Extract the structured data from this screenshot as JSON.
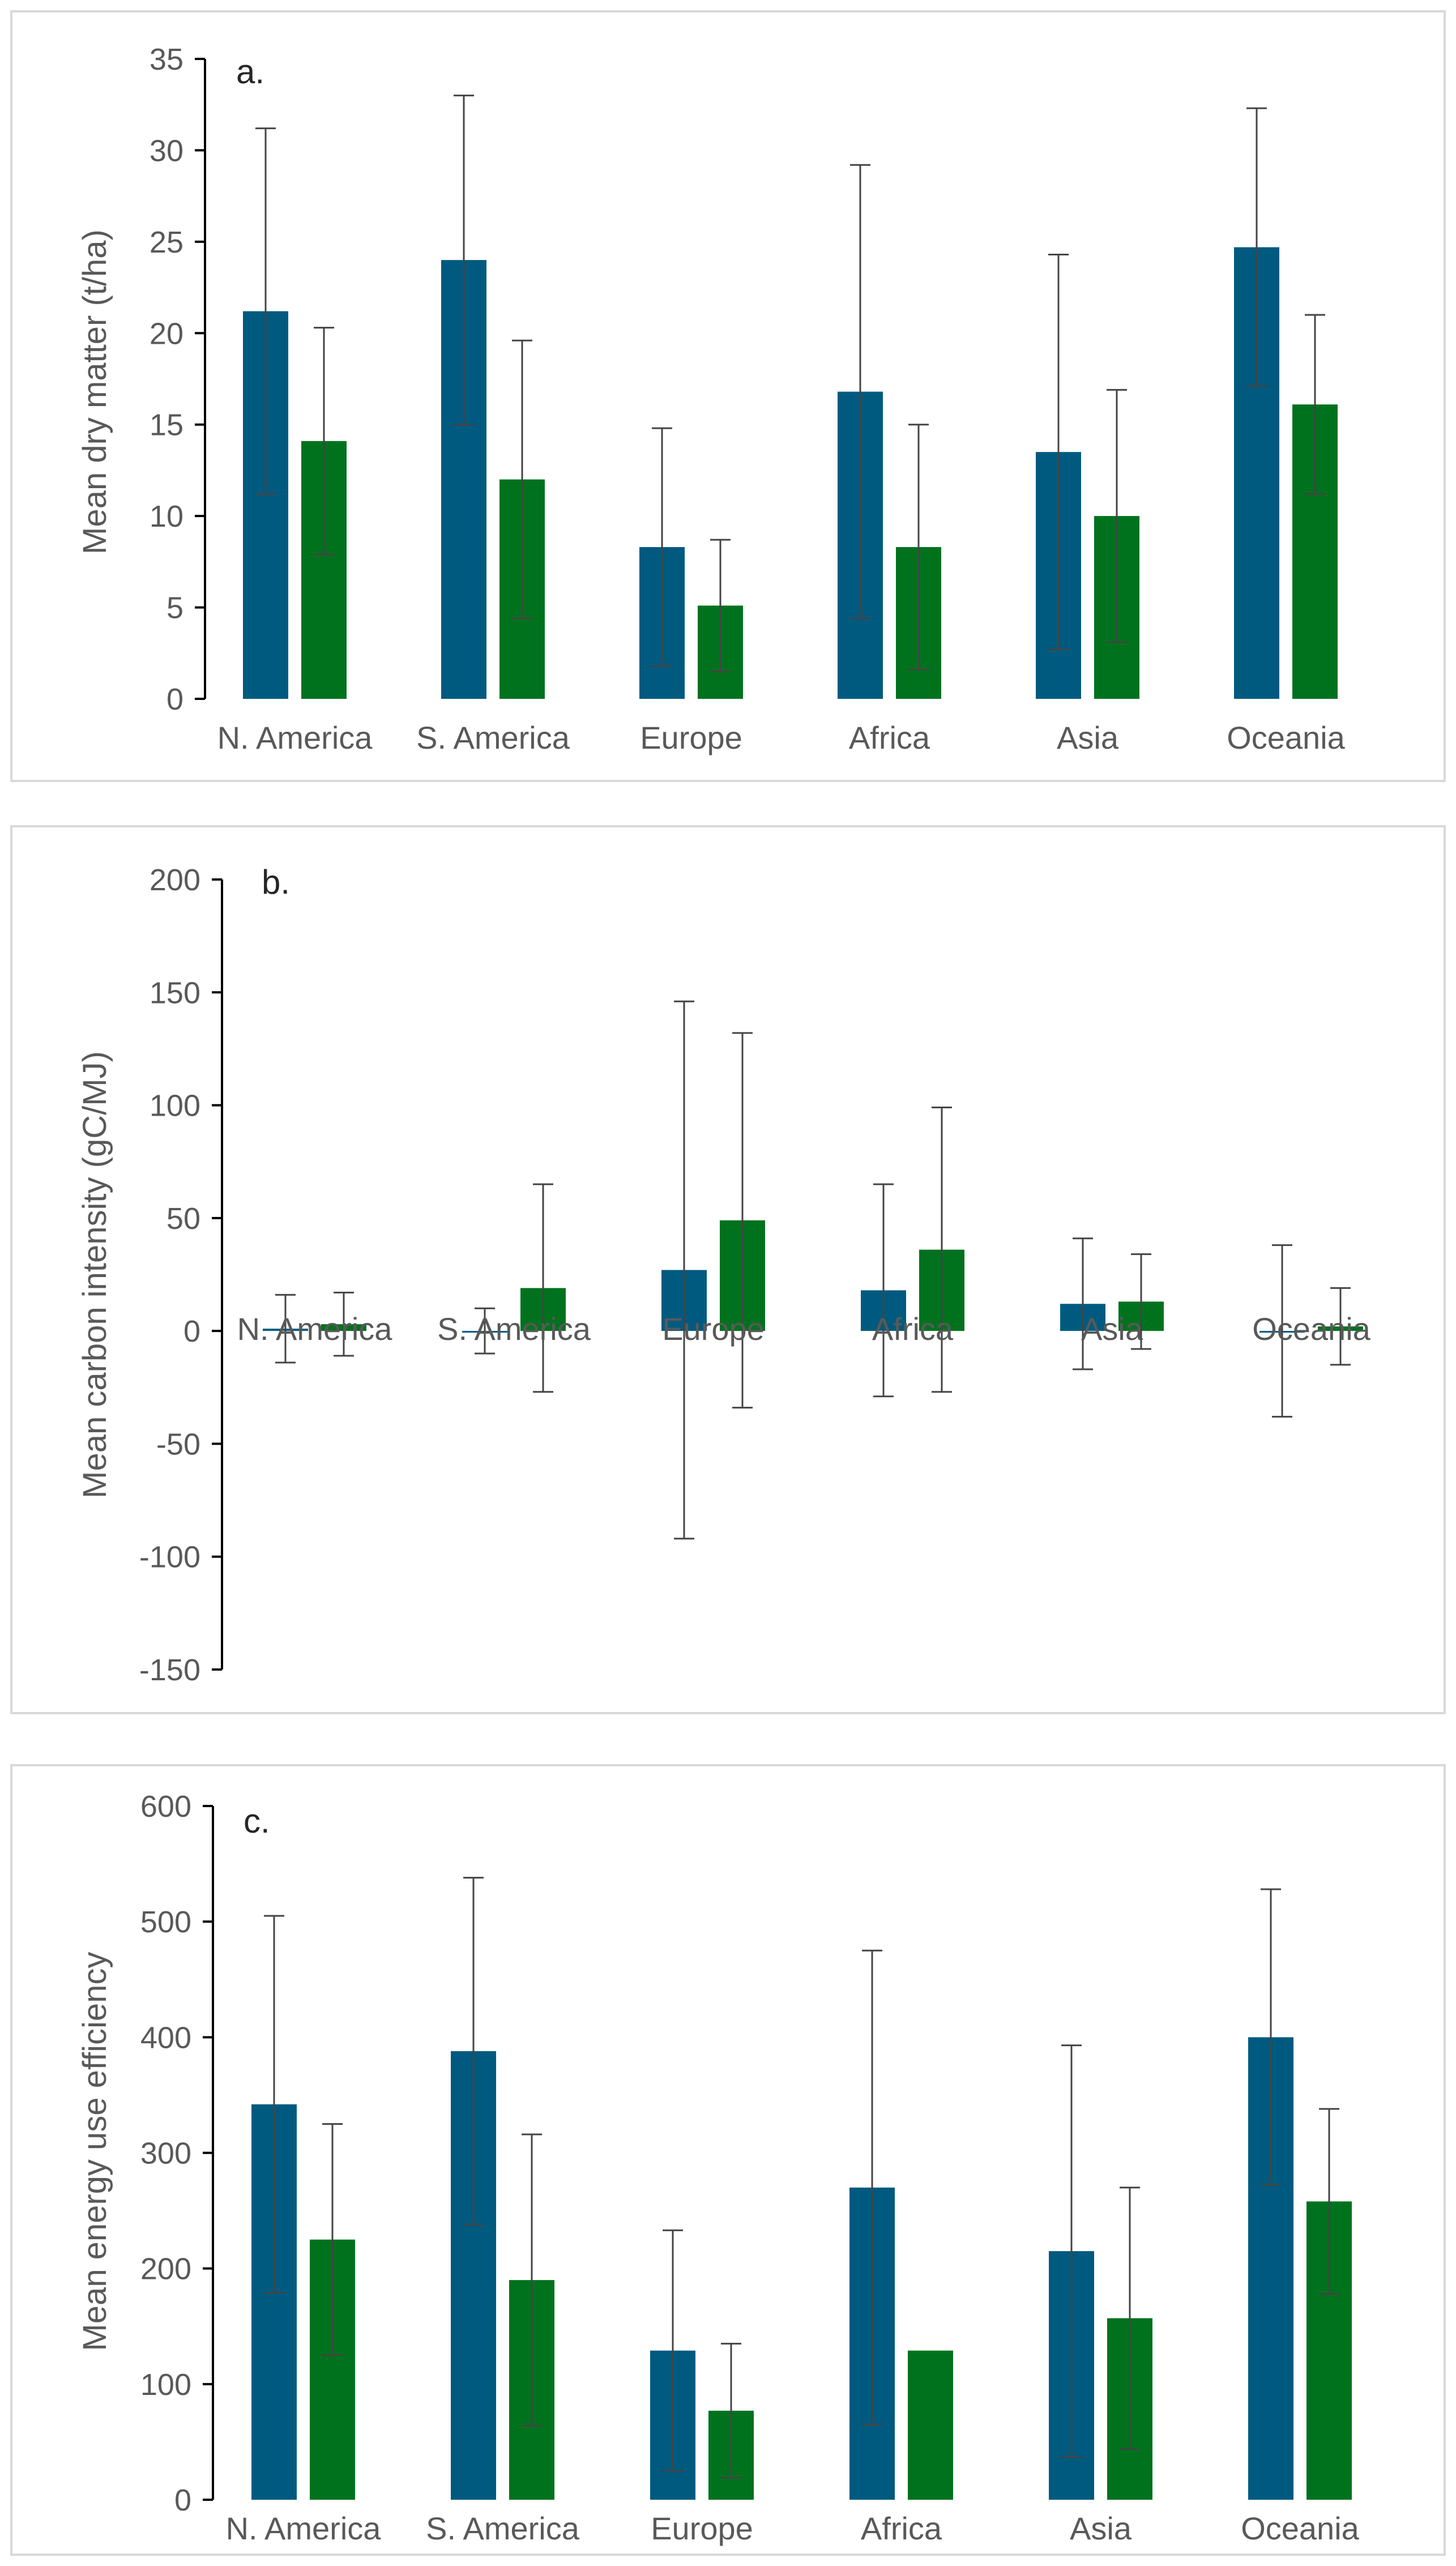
{
  "colors": {
    "series1": "#005a7f",
    "series2": "#00721e",
    "axis": "#000000",
    "error": "#444444",
    "text": "#595959"
  },
  "chart_data": [
    {
      "type": "bar",
      "panel_label": "a.",
      "ylabel": "Mean dry matter  (t/ha)",
      "categories": [
        "N. America",
        "S. America",
        "Europe",
        "Africa",
        "Asia",
        "Oceania"
      ],
      "ylim": [
        0,
        35
      ],
      "yticks": [
        0,
        5,
        10,
        15,
        20,
        25,
        30,
        35
      ],
      "series": [
        {
          "values": [
            21.2,
            24.0,
            8.3,
            16.8,
            13.5,
            24.7
          ],
          "errors": [
            10,
            9,
            6.5,
            12.4,
            10.8,
            7.6
          ]
        },
        {
          "values": [
            14.1,
            12.0,
            5.1,
            8.3,
            10.0,
            16.1
          ],
          "errors": [
            6.2,
            7.6,
            3.6,
            6.7,
            6.9,
            4.9
          ]
        }
      ]
    },
    {
      "type": "bar",
      "panel_label": "b.",
      "ylabel": "Mean carbon intensity (gC/MJ)",
      "categories": [
        "N. America",
        "S. America",
        "Europe",
        "Africa",
        "Asia",
        "Oceania"
      ],
      "ylim": [
        -150,
        200
      ],
      "yticks": [
        -150,
        -100,
        -50,
        0,
        50,
        100,
        150,
        200
      ],
      "series": [
        {
          "values": [
            1,
            0,
            27,
            18,
            12,
            0
          ],
          "errors": [
            15,
            10,
            119,
            47,
            29,
            38
          ]
        },
        {
          "values": [
            3,
            19,
            49,
            36,
            13,
            2
          ],
          "errors": [
            14,
            46,
            83,
            63,
            21,
            17
          ]
        }
      ]
    },
    {
      "type": "bar",
      "panel_label": "c.",
      "ylabel": "Mean energy use efficiency",
      "categories": [
        "N. America",
        "S. America",
        "Europe",
        "Africa",
        "Asia",
        "Oceania"
      ],
      "ylim": [
        0,
        600
      ],
      "yticks": [
        0,
        100,
        200,
        300,
        400,
        500,
        600
      ],
      "series": [
        {
          "values": [
            342,
            388,
            129,
            270,
            215,
            400
          ],
          "errors": [
            163,
            150,
            104,
            205,
            178,
            128
          ]
        },
        {
          "values": [
            225,
            190,
            77,
            129,
            157,
            258
          ],
          "errors": [
            100,
            126,
            58,
            0,
            113,
            80
          ]
        }
      ]
    }
  ]
}
